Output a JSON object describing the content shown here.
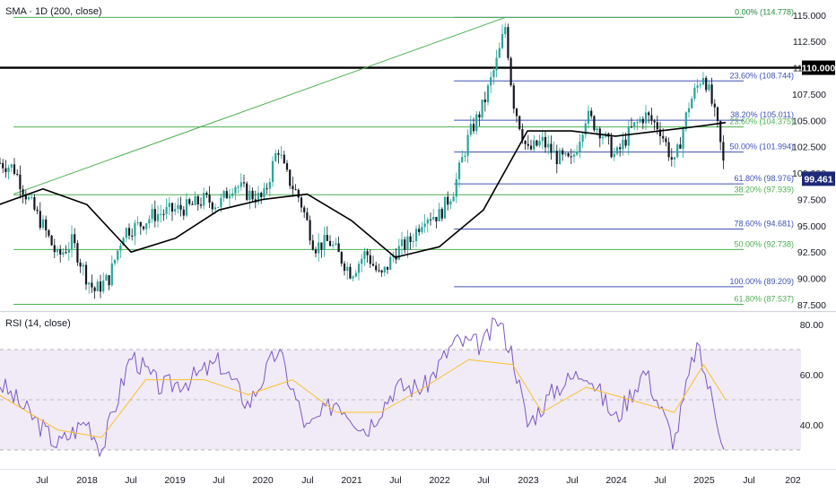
{
  "main_pane": {
    "indicator_label": "SMA · 1D (200, close)"
  },
  "rsi_pane": {
    "indicator_label": "RSI (14, close)"
  },
  "colors": {
    "candle_up": "#26a69a",
    "candle_down": "#131722",
    "sma": "#000000",
    "resistance": "#000000",
    "fib_blue": "#3f51b5",
    "fib_green": "#4caf50",
    "trendline": "#4caf50",
    "price_badge": "#1e2a78",
    "rsi_line": "#7e57c2",
    "rsi_ma": "#fbc02d",
    "rsi_band": "#ede7f6"
  },
  "chart_data": [
    {
      "type": "candlestick",
      "title": "",
      "y_ticks": [
        "87.500",
        "90.000",
        "92.500",
        "95.000",
        "97.500",
        "100.000",
        "102.500",
        "105.000",
        "107.500",
        "110.000",
        "112.500",
        "115.000"
      ],
      "ylim": [
        87.0,
        116.0
      ],
      "x_ticks": [
        "Jul",
        "2018",
        "Jul",
        "2019",
        "Jul",
        "2020",
        "Jul",
        "2021",
        "Jul",
        "2022",
        "Jul",
        "2023",
        "Jul",
        "2024",
        "Jul",
        "2025",
        "Jul",
        "202"
      ],
      "current_price": "99.461",
      "resistance": {
        "value": 110.0,
        "label": "110.000"
      },
      "fib_levels": [
        {
          "label": "0.00% (114.778)",
          "value": 114.778,
          "color": "blue",
          "from": "2022-03",
          "to": "2025-04"
        },
        {
          "label": "0.00% (114.778)",
          "value": 114.778,
          "color": "green",
          "from": "2017-03",
          "to": "2025-04"
        },
        {
          "label": "23.60% (108.744)",
          "value": 108.744,
          "color": "blue",
          "from": "2022-03",
          "to": "2025-04"
        },
        {
          "label": "38.20% (105.011)",
          "value": 105.011,
          "color": "blue",
          "from": "2022-03",
          "to": "2025-04"
        },
        {
          "label": "23.60% (104.375)",
          "value": 104.375,
          "color": "green",
          "from": "2017-03",
          "to": "2025-04"
        },
        {
          "label": "50.00% (101.994)",
          "value": 101.994,
          "color": "blue",
          "from": "2022-03",
          "to": "2025-04"
        },
        {
          "label": "61.80% (98.976)",
          "value": 98.976,
          "color": "blue",
          "from": "2022-03",
          "to": "2025-04"
        },
        {
          "label": "38.20% (97.939)",
          "value": 97.939,
          "color": "green",
          "from": "2017-03",
          "to": "2025-04"
        },
        {
          "label": "78.60% (94.681)",
          "value": 94.681,
          "color": "blue",
          "from": "2022-03",
          "to": "2025-04"
        },
        {
          "label": "50.00% (92.738)",
          "value": 92.738,
          "color": "green",
          "from": "2017-03",
          "to": "2025-04"
        },
        {
          "label": "100.00% (89.209)",
          "value": 89.209,
          "color": "blue",
          "from": "2022-03",
          "to": "2025-04"
        },
        {
          "label": "61.80% (87.537)",
          "value": 87.537,
          "color": "green",
          "from": "2017-03",
          "to": "2025-04"
        }
      ],
      "trendline": {
        "from": [
          "2017-03",
          98.0
        ],
        "to": [
          "2022-10",
          114.778
        ]
      },
      "price_path": [
        [
          "2017-01",
          101.0
        ],
        [
          "2017-03",
          100.5
        ],
        [
          "2017-05",
          97.5
        ],
        [
          "2017-07",
          95.0
        ],
        [
          "2017-09",
          92.0
        ],
        [
          "2017-11",
          93.5
        ],
        [
          "2018-01",
          90.0
        ],
        [
          "2018-02",
          88.8
        ],
        [
          "2018-04",
          90.0
        ],
        [
          "2018-06",
          94.5
        ],
        [
          "2018-08",
          95.0
        ],
        [
          "2018-10",
          96.0
        ],
        [
          "2019-01",
          96.5
        ],
        [
          "2019-03",
          96.8
        ],
        [
          "2019-05",
          97.5
        ],
        [
          "2019-07",
          97.0
        ],
        [
          "2019-09",
          99.0
        ],
        [
          "2019-11",
          98.0
        ],
        [
          "2020-01",
          97.5
        ],
        [
          "2020-03",
          102.5
        ],
        [
          "2020-04",
          100.0
        ],
        [
          "2020-06",
          97.5
        ],
        [
          "2020-08",
          93.0
        ],
        [
          "2020-10",
          93.5
        ],
        [
          "2021-01",
          90.5
        ],
        [
          "2021-03",
          92.5
        ],
        [
          "2021-05",
          90.0
        ],
        [
          "2021-07",
          92.5
        ],
        [
          "2021-09",
          93.5
        ],
        [
          "2021-11",
          96.0
        ],
        [
          "2022-01",
          96.0
        ],
        [
          "2022-03",
          98.5
        ],
        [
          "2022-05",
          103.5
        ],
        [
          "2022-07",
          106.5
        ],
        [
          "2022-09",
          111.0
        ],
        [
          "2022-10",
          114.0
        ],
        [
          "2022-11",
          107.0
        ],
        [
          "2023-01",
          102.0
        ],
        [
          "2023-03",
          103.0
        ],
        [
          "2023-05",
          101.5
        ],
        [
          "2023-07",
          101.0
        ],
        [
          "2023-09",
          105.5
        ],
        [
          "2023-11",
          104.0
        ],
        [
          "2024-01",
          101.5
        ],
        [
          "2024-03",
          104.0
        ],
        [
          "2024-05",
          105.5
        ],
        [
          "2024-07",
          104.3
        ],
        [
          "2024-09",
          100.7
        ],
        [
          "2024-11",
          106.5
        ],
        [
          "2025-01",
          109.5
        ],
        [
          "2025-02",
          107.0
        ],
        [
          "2025-03",
          104.0
        ],
        [
          "2025-04",
          99.5
        ]
      ],
      "sma_path": [
        [
          "2017-01",
          97.0
        ],
        [
          "2017-07",
          98.5
        ],
        [
          "2018-01",
          97.0
        ],
        [
          "2018-07",
          92.5
        ],
        [
          "2019-01",
          93.8
        ],
        [
          "2019-07",
          96.5
        ],
        [
          "2020-01",
          97.5
        ],
        [
          "2020-07",
          98.0
        ],
        [
          "2021-01",
          95.5
        ],
        [
          "2021-07",
          92.0
        ],
        [
          "2022-01",
          93.0
        ],
        [
          "2022-07",
          96.5
        ],
        [
          "2023-01",
          104.0
        ],
        [
          "2023-07",
          104.0
        ],
        [
          "2024-01",
          103.5
        ],
        [
          "2024-07",
          104.0
        ],
        [
          "2025-01",
          104.5
        ],
        [
          "2025-04",
          104.8
        ]
      ]
    },
    {
      "type": "line",
      "title": "",
      "y_ticks": [
        "40.00",
        "60.00",
        "80.00"
      ],
      "ylim": [
        25,
        85
      ],
      "band": [
        30,
        70
      ],
      "rsi_path": [
        [
          "2017-01",
          57
        ],
        [
          "2017-05",
          45
        ],
        [
          "2017-09",
          32
        ],
        [
          "2018-01",
          42
        ],
        [
          "2018-03",
          30
        ],
        [
          "2018-07",
          68
        ],
        [
          "2018-11",
          55
        ],
        [
          "2019-03",
          58
        ],
        [
          "2019-07",
          65
        ],
        [
          "2019-11",
          48
        ],
        [
          "2020-03",
          70
        ],
        [
          "2020-07",
          38
        ],
        [
          "2020-11",
          50
        ],
        [
          "2021-03",
          38
        ],
        [
          "2021-07",
          55
        ],
        [
          "2021-11",
          55
        ],
        [
          "2022-03",
          73
        ],
        [
          "2022-07",
          72
        ],
        [
          "2022-09",
          82
        ],
        [
          "2022-11",
          68
        ],
        [
          "2023-01",
          40
        ],
        [
          "2023-05",
          55
        ],
        [
          "2023-09",
          62
        ],
        [
          "2024-01",
          42
        ],
        [
          "2024-05",
          62
        ],
        [
          "2024-09",
          33
        ],
        [
          "2024-12",
          72
        ],
        [
          "2025-02",
          52
        ],
        [
          "2025-04",
          30
        ]
      ],
      "rsi_ma_path": [
        [
          "2017-01",
          52
        ],
        [
          "2017-09",
          38
        ],
        [
          "2018-03",
          35
        ],
        [
          "2018-09",
          58
        ],
        [
          "2019-05",
          58
        ],
        [
          "2019-11",
          52
        ],
        [
          "2020-05",
          58
        ],
        [
          "2020-11",
          45
        ],
        [
          "2021-05",
          45
        ],
        [
          "2021-11",
          55
        ],
        [
          "2022-05",
          66
        ],
        [
          "2022-11",
          64
        ],
        [
          "2023-03",
          45
        ],
        [
          "2023-09",
          55
        ],
        [
          "2024-03",
          50
        ],
        [
          "2024-09",
          45
        ],
        [
          "2025-01",
          64
        ],
        [
          "2025-04",
          50
        ]
      ]
    }
  ]
}
